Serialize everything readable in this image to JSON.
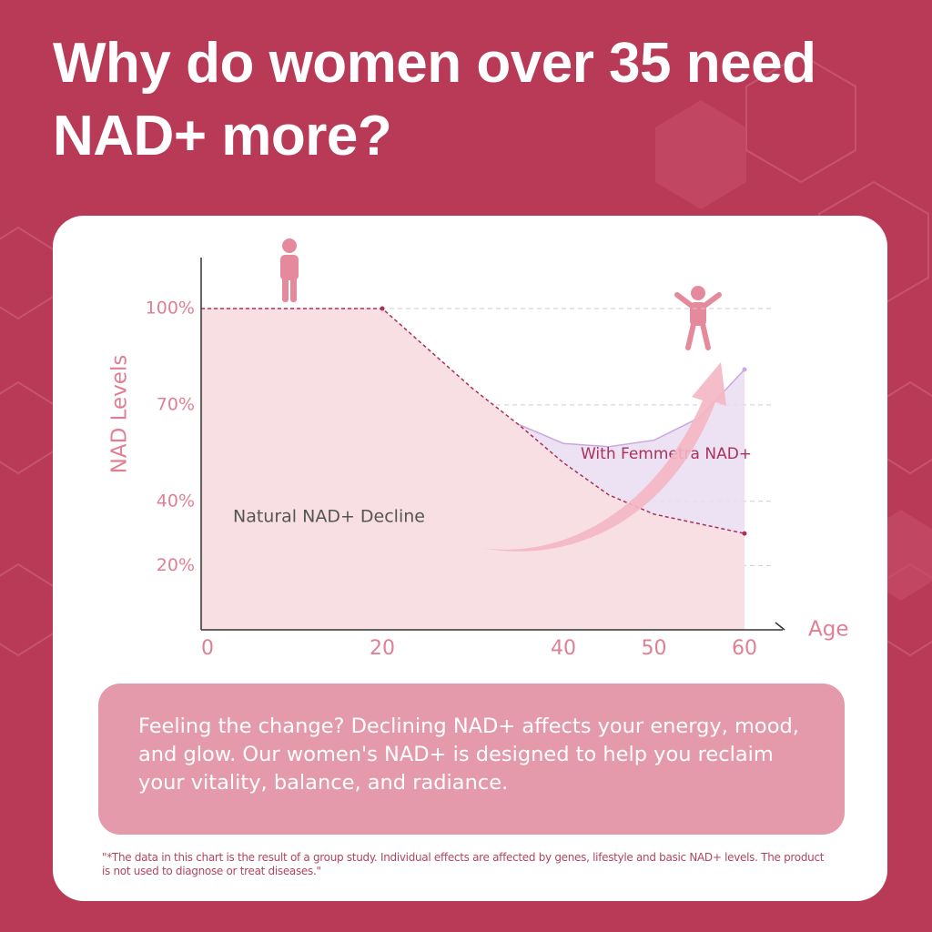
{
  "title": "Why do women over 35 need NAD+ more?",
  "chart_data": {
    "type": "area",
    "y_label": "NAD Levels",
    "x_label": "Age",
    "x": [
      0,
      20,
      30,
      35,
      40,
      45,
      50,
      55,
      60
    ],
    "series": [
      {
        "name": "Natural NAD+ Decline",
        "color": "#f7dfe3",
        "line_color": "#a8325a",
        "values": [
          100,
          100,
          75,
          64,
          52,
          42,
          36,
          33,
          30
        ]
      },
      {
        "name": "With Femmetra NAD+",
        "color": "#eadcf2",
        "line_color": "#c9a8e0",
        "values": [
          null,
          null,
          null,
          64,
          58,
          57,
          59,
          66,
          81
        ]
      }
    ],
    "xlim": [
      0,
      63
    ],
    "ylim": [
      0,
      115
    ],
    "xticks": [
      0,
      20,
      40,
      50,
      60
    ],
    "yticks": [
      {
        "value": 20,
        "label": "20%"
      },
      {
        "value": 40,
        "label": "40%"
      },
      {
        "value": 70,
        "label": "70%"
      },
      {
        "value": 100,
        "label": "100%"
      }
    ],
    "grid": true
  },
  "message": "Feeling the change? Declining NAD+ affects your energy, mood, and glow. Our women's NAD+ is designed to help you reclaim your vitality, balance, and radiance.",
  "disclaimer": "\"*The data in this chart is the result of a group study. Individual effects are affected by genes, lifestyle and basic NAD+ levels. The product is not used to diagnose or treat diseases.\""
}
